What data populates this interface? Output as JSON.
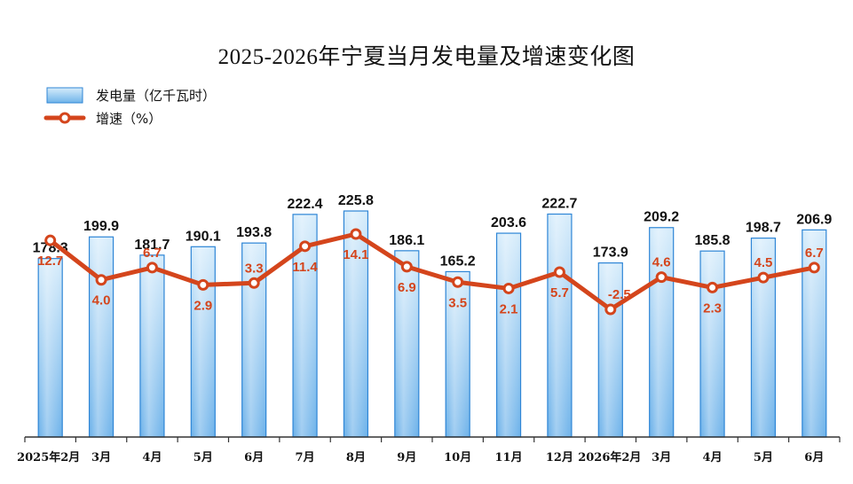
{
  "chart_data": {
    "type": "bar",
    "title": "2025-2026年宁夏当月发电量及增速变化图",
    "categories": [
      "2025年2月",
      "3月",
      "4月",
      "5月",
      "6月",
      "7月",
      "8月",
      "9月",
      "10月",
      "11月",
      "12月",
      "2026年2月",
      "3月",
      "4月",
      "5月",
      "6月"
    ],
    "series": [
      {
        "name": "发电量（亿千瓦时）",
        "type": "bar",
        "values": [
          178.3,
          199.9,
          181.7,
          190.1,
          193.8,
          222.4,
          225.8,
          186.1,
          165.2,
          203.6,
          222.7,
          173.9,
          209.2,
          185.8,
          198.7,
          206.9
        ]
      },
      {
        "name": "增速（%）",
        "type": "line",
        "values": [
          12.7,
          4.0,
          6.7,
          2.9,
          3.3,
          11.4,
          14.1,
          6.9,
          3.5,
          2.1,
          5.7,
          -2.5,
          4.6,
          2.3,
          4.5,
          6.7
        ]
      }
    ],
    "colors": {
      "bar_fill_top": "#d6ecfb",
      "bar_fill_bottom": "#6fb3ea",
      "bar_stroke": "#2f86d6",
      "line": "#d4451c",
      "marker_fill": "#ffffff"
    },
    "legend_position": "top-left",
    "grid": false
  }
}
